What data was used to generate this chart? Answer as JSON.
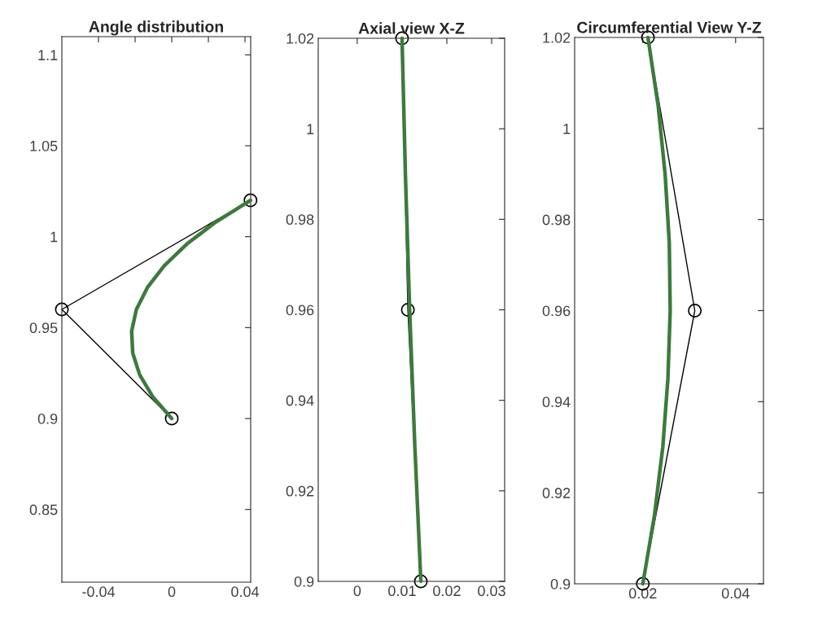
{
  "chart_data": [
    {
      "type": "line",
      "title": "Angle distribution",
      "xlim": [
        -0.06,
        0.0431
      ],
      "ylim": [
        0.81,
        1.11
      ],
      "xticks": [
        -0.04,
        {
          "value": -0.02,
          "label": null
        },
        0,
        {
          "value": 0.02,
          "label": null
        },
        0.04
      ],
      "yticks": [
        0.85,
        0.9,
        0.95,
        1,
        1.05,
        1.1
      ],
      "grid": false,
      "legend": false,
      "series": [
        {
          "color": "#000000",
          "marker": "circle",
          "x": [
            0,
            -0.06,
            0.043
          ],
          "values": [
            0.9,
            0.96,
            1.02
          ]
        },
        {
          "color": "#3d7a3d",
          "marker": "none",
          "x": [
            0,
            -0.0104,
            -0.0175,
            -0.0213,
            -0.0219,
            -0.0193,
            -0.0133,
            -0.0041,
            0.0083,
            0.024,
            0.043
          ],
          "values": [
            0.9,
            0.912,
            0.924,
            0.936,
            0.948,
            0.96,
            0.972,
            0.984,
            0.996,
            1.008,
            1.02
          ]
        }
      ]
    },
    {
      "type": "line",
      "title": "Axial view X-Z",
      "xlim": [
        -0.0087,
        0.0329
      ],
      "ylim": [
        0.9,
        1.02
      ],
      "xticks": [
        0,
        0.01,
        0.02,
        0.03
      ],
      "yticks": [
        0.9,
        0.92,
        0.94,
        0.96,
        0.98,
        1,
        1.02
      ],
      "grid": false,
      "legend": false,
      "series": [
        {
          "color": "#000000",
          "marker": "circle",
          "x": [
            0.0142,
            0.0113,
            0.01
          ],
          "values": [
            0.9,
            0.96,
            1.02
          ]
        },
        {
          "color": "#3d7a3d",
          "marker": "none",
          "x": [
            0.0142,
            0.01285,
            0.0117,
            0.01075,
            0.01
          ],
          "values": [
            0.9,
            0.93,
            0.96,
            0.99,
            1.02
          ]
        }
      ]
    },
    {
      "type": "line",
      "title": "Circumferential View Y-Z",
      "xlim": [
        0.0053,
        0.046
      ],
      "ylim": [
        0.9,
        1.02
      ],
      "xticks": [
        0.02,
        0.04
      ],
      "yticks": [
        0.9,
        0.92,
        0.94,
        0.96,
        0.98,
        1,
        1.02
      ],
      "grid": false,
      "legend": false,
      "series": [
        {
          "color": "#000000",
          "marker": "circle",
          "x": [
            0.02,
            0.0312,
            0.0211
          ],
          "values": [
            0.9,
            0.96,
            1.02
          ]
        },
        {
          "color": "#3d7a3d",
          "marker": "none",
          "x": [
            0.02,
            0.0225,
            0.0243,
            0.0254,
            0.0259,
            0.0257,
            0.0248,
            0.0233,
            0.0211
          ],
          "values": [
            0.9,
            0.915,
            0.93,
            0.945,
            0.96,
            0.975,
            0.99,
            1.005,
            1.02
          ]
        }
      ]
    }
  ]
}
